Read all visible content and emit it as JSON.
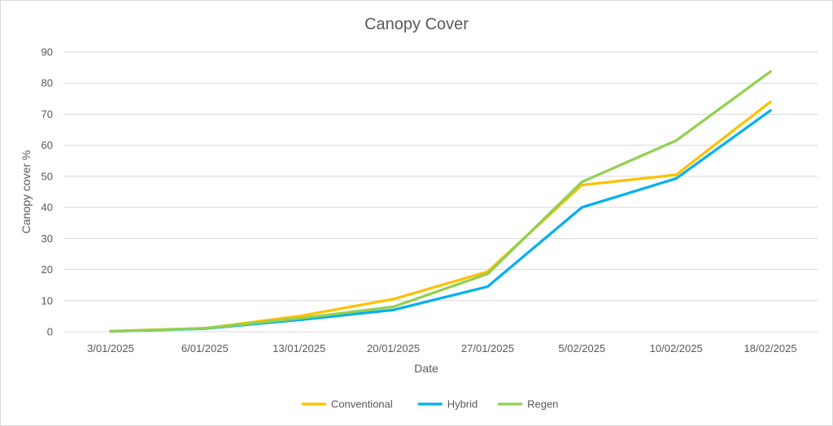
{
  "chart_data": {
    "type": "line",
    "title": "Canopy Cover",
    "xlabel": "Date",
    "ylabel": "Canopy cover %",
    "ylim": [
      0,
      90
    ],
    "yticks": [
      0,
      10,
      20,
      30,
      40,
      50,
      60,
      70,
      80,
      90
    ],
    "grid": "horizontal",
    "legend_position": "bottom",
    "categories": [
      "3/01/2025",
      "6/01/2025",
      "13/01/2025",
      "20/01/2025",
      "27/01/2025",
      "5/02/2025",
      "10/02/2025",
      "18/02/2025"
    ],
    "series": [
      {
        "name": "Conventional",
        "color": "#FFC000",
        "values": [
          0.2,
          1.1,
          5.0,
          10.5,
          19.3,
          47.2,
          50.5,
          74.0
        ]
      },
      {
        "name": "Hybrid",
        "color": "#00B0F0",
        "values": [
          0.1,
          1.0,
          3.8,
          7.0,
          14.5,
          40.0,
          49.3,
          71.2
        ]
      },
      {
        "name": "Regen",
        "color": "#92D050",
        "values": [
          0.1,
          1.1,
          4.3,
          8.0,
          18.6,
          48.2,
          61.5,
          83.7
        ]
      }
    ]
  }
}
